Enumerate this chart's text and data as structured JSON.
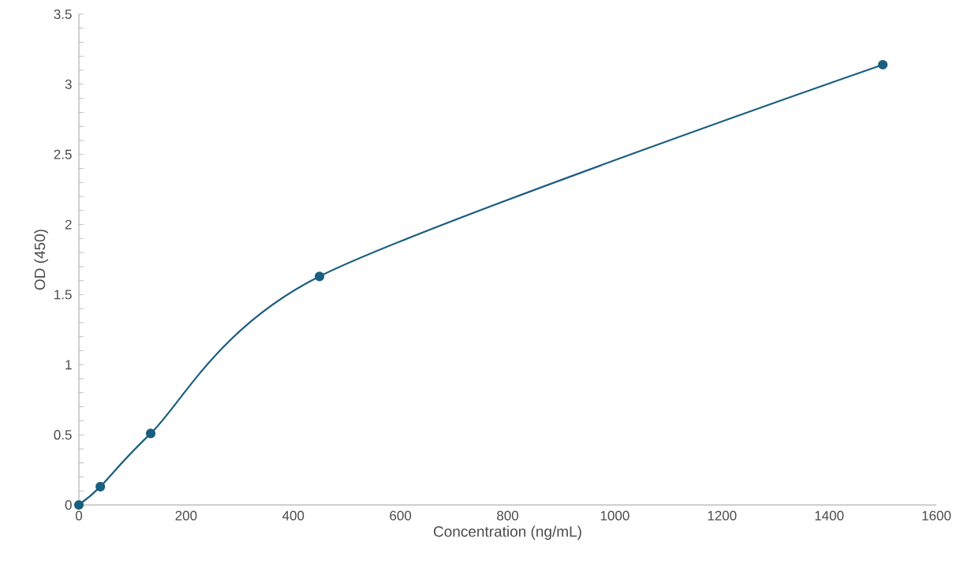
{
  "chart_data": {
    "type": "line",
    "xlabel": "Concentration (ng/mL)",
    "ylabel": "OD (450)",
    "x": [
      0,
      40,
      134,
      449,
      1500
    ],
    "series": [
      {
        "color": "#1a5e80",
        "values": [
          0,
          0.13,
          0.51,
          1.63,
          3.14
        ]
      }
    ],
    "xlim": [
      0,
      1600
    ],
    "xticks": [
      0,
      200,
      400,
      600,
      800,
      1000,
      1200,
      1400,
      1600
    ],
    "ylim": [
      0,
      3.5
    ],
    "yticks": [
      0,
      0.5,
      1,
      1.5,
      2,
      2.5,
      3,
      3.5
    ],
    "marker": "circle",
    "line_style": "solid"
  }
}
